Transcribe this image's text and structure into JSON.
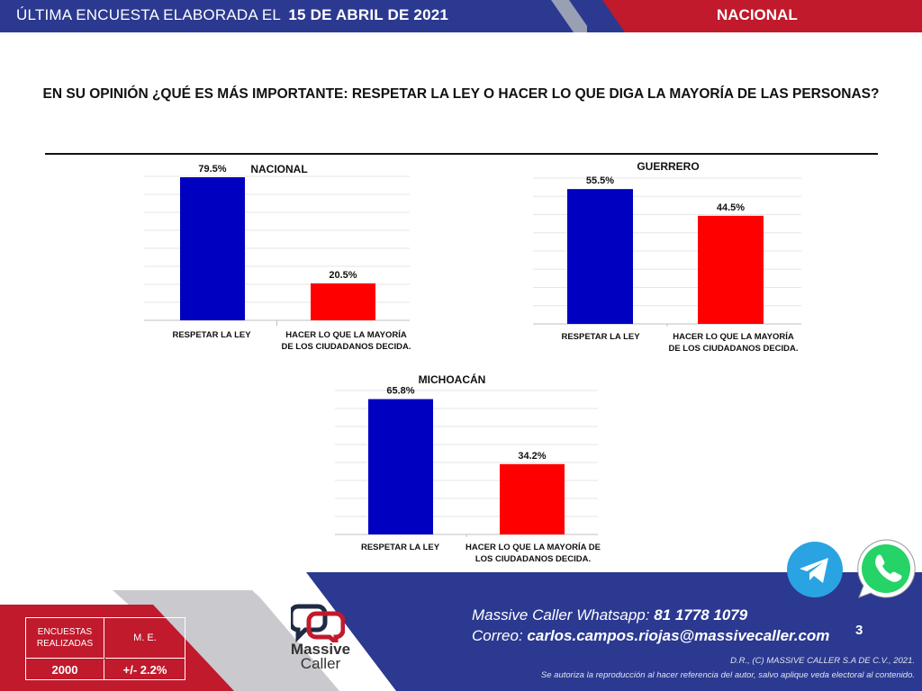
{
  "header": {
    "left_text": "ÚLTIMA ENCUESTA ELABORADA EL",
    "date": "15 DE ABRIL DE 2021",
    "right_text": "NACIONAL"
  },
  "question": "EN SU OPINIÓN ¿QUÉ ES MÁS IMPORTANTE: RESPETAR LA LEY O HACER LO QUE DIGA LA MAYORÍA DE LAS PERSONAS?",
  "chart_data": [
    {
      "type": "bar",
      "title": "NACIONAL",
      "categories": [
        "RESPETAR LA LEY",
        "HACER LO QUE LA MAYORÍA DE LOS CIUDADANOS DECIDA."
      ],
      "values": [
        79.5,
        20.5
      ],
      "labels": [
        "79.5%",
        "20.5%"
      ],
      "colors": [
        "#0000c0",
        "#ff0000"
      ],
      "ylim": [
        0,
        80
      ],
      "grid": true
    },
    {
      "type": "bar",
      "title": "GUERRERO",
      "categories": [
        "RESPETAR LA LEY",
        "HACER LO QUE LA MAYORÍA DE LOS CIUDADANOS DECIDA."
      ],
      "values": [
        55.5,
        44.5
      ],
      "labels": [
        "55.5%",
        "44.5%"
      ],
      "colors": [
        "#0000c0",
        "#ff0000"
      ],
      "ylim": [
        0,
        60
      ],
      "grid": true
    },
    {
      "type": "bar",
      "title": "MICHOACÁN",
      "categories": [
        "RESPETAR LA LEY",
        "HACER LO QUE LA MAYORÍA DE LOS CIUDADANOS DECIDA."
      ],
      "values": [
        65.8,
        34.2
      ],
      "labels": [
        "65.8%",
        "34.2%"
      ],
      "colors": [
        "#0000c0",
        "#ff0000"
      ],
      "ylim": [
        0,
        70
      ],
      "grid": true
    }
  ],
  "stats": {
    "surveys_label": "ENCUESTAS REALIZADAS",
    "me_label": "M. E.",
    "surveys_value": "2000",
    "me_value": "+/- 2.2%"
  },
  "brand": {
    "name_line1": "Massive",
    "name_line2": "Caller"
  },
  "contact": {
    "whatsapp_label": "Massive Caller Whatsapp:",
    "whatsapp_number": "81 1778 1079",
    "email_label": "Correo:",
    "email": "carlos.campos.riojas@massivecaller.com"
  },
  "page_number": "3",
  "legal": {
    "line1": "D.R., (C) MASSIVE CALLER S.A DE C.V., 2021.",
    "line2": "Se autoriza la reproducción al hacer referencia del autor, salvo aplique veda electoral al contenido."
  },
  "colors": {
    "navy": "#2b3990",
    "red": "#c01a2c",
    "bar_blue": "#0000c0",
    "bar_red": "#ff0000",
    "telegram": "#2aa3e2",
    "whatsapp": "#25d366"
  },
  "icons": [
    "telegram-icon",
    "whatsapp-icon",
    "massive-caller-logo"
  ]
}
